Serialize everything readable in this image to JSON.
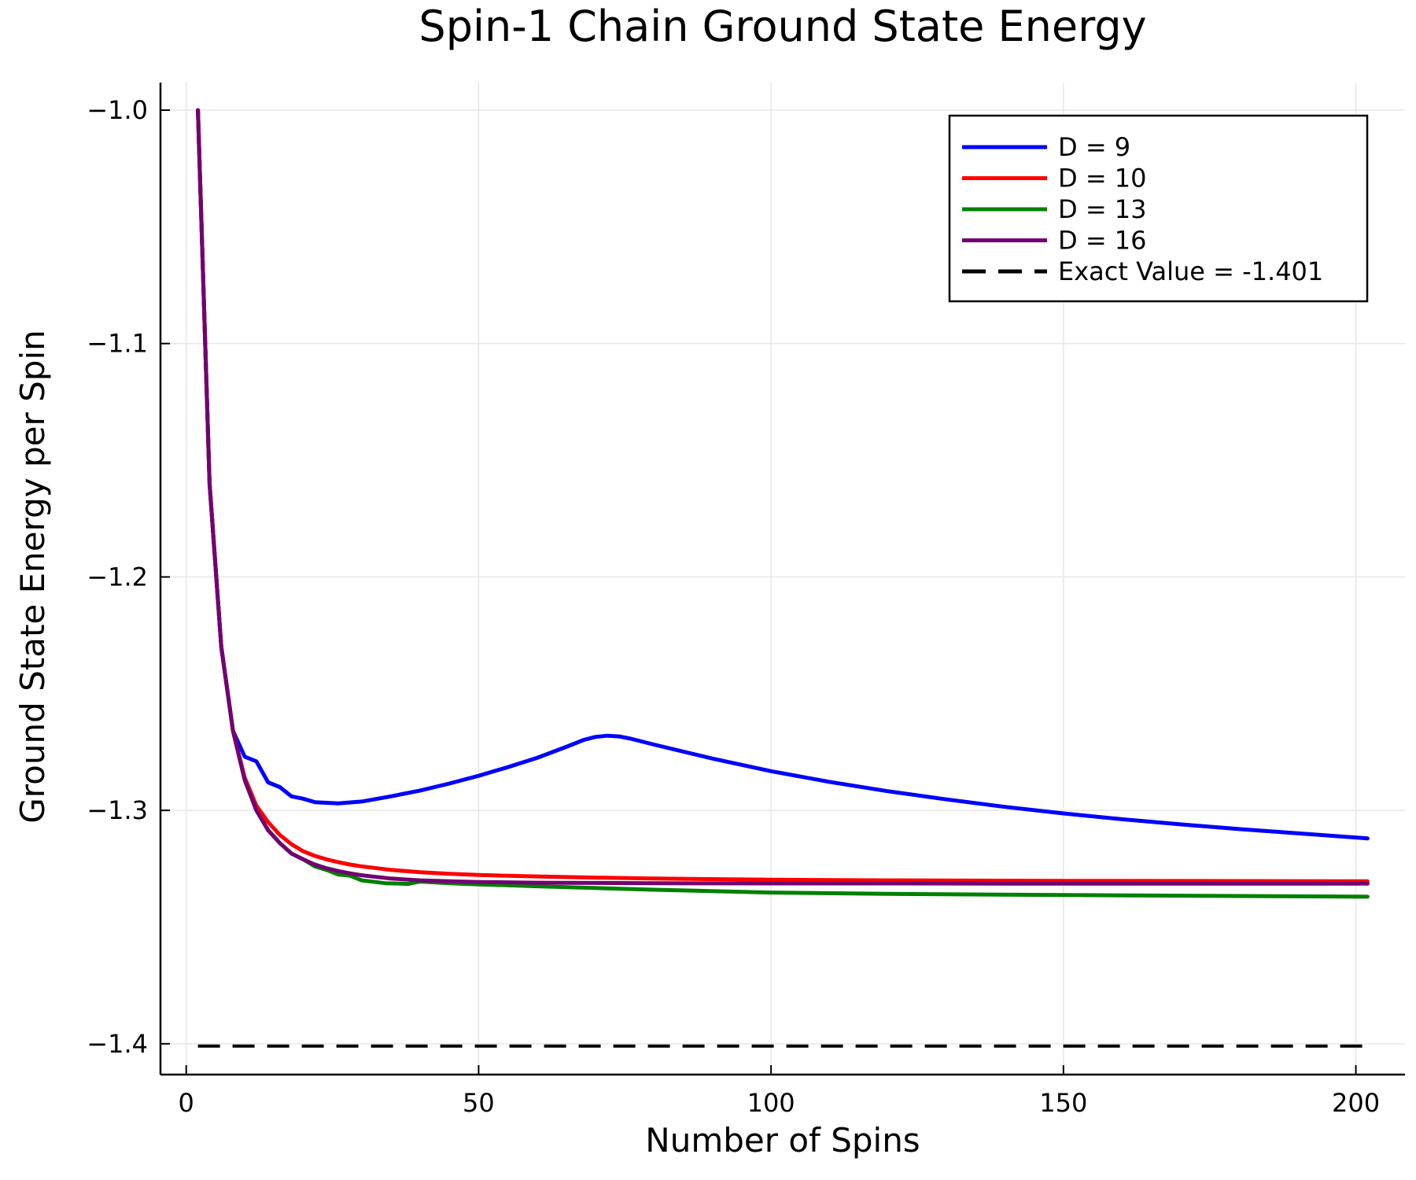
{
  "chart_data": {
    "type": "line",
    "title": "Spin-1 Chain Ground State Energy",
    "xlabel": "Number of Spins",
    "ylabel": "Ground State Energy per Spin",
    "xlim": [
      -4.4,
      208.4
    ],
    "ylim": [
      -1.4132,
      -0.9882
    ],
    "xticks": [
      0,
      50,
      100,
      150,
      200
    ],
    "yticks": [
      -1.0,
      -1.1,
      -1.2,
      -1.3,
      -1.4
    ],
    "ytick_labels": [
      "−1.0",
      "−1.1",
      "−1.2",
      "−1.3",
      "−1.4"
    ],
    "grid": true,
    "legend_position": "top-right",
    "series": [
      {
        "name": "D = 9",
        "color": "#0000ff",
        "x": [
          2,
          4,
          6,
          8,
          10,
          12,
          14,
          16,
          18,
          20,
          22,
          26,
          30,
          35,
          40,
          45,
          50,
          55,
          60,
          65,
          68,
          70,
          72,
          74,
          76,
          80,
          90,
          100,
          110,
          120,
          130,
          140,
          150,
          160,
          170,
          180,
          190,
          202
        ],
        "y": [
          -1.0,
          -1.16,
          -1.23,
          -1.266,
          -1.277,
          -1.279,
          -1.288,
          -1.29,
          -1.294,
          -1.295,
          -1.2965,
          -1.297,
          -1.2962,
          -1.294,
          -1.2915,
          -1.2885,
          -1.2852,
          -1.2815,
          -1.2775,
          -1.2728,
          -1.2698,
          -1.2685,
          -1.268,
          -1.2683,
          -1.2693,
          -1.2718,
          -1.2778,
          -1.2832,
          -1.2878,
          -1.2918,
          -1.2953,
          -1.2985,
          -1.3013,
          -1.3038,
          -1.306,
          -1.308,
          -1.3098,
          -1.312
        ]
      },
      {
        "name": "D = 10",
        "color": "#ff0000",
        "x": [
          2,
          4,
          6,
          8,
          10,
          12,
          14,
          16,
          18,
          20,
          22,
          24,
          26,
          28,
          30,
          35,
          40,
          45,
          50,
          60,
          70,
          80,
          100,
          120,
          150,
          180,
          202
        ],
        "y": [
          -1.0,
          -1.16,
          -1.23,
          -1.266,
          -1.286,
          -1.298,
          -1.305,
          -1.3105,
          -1.3145,
          -1.3175,
          -1.3195,
          -1.321,
          -1.3222,
          -1.3232,
          -1.324,
          -1.3255,
          -1.3265,
          -1.3272,
          -1.3277,
          -1.3283,
          -1.3288,
          -1.3292,
          -1.3297,
          -1.33,
          -1.3302,
          -1.3303,
          -1.3304
        ]
      },
      {
        "name": "D = 13",
        "color": "#008000",
        "x": [
          2,
          4,
          6,
          8,
          10,
          12,
          14,
          16,
          18,
          20,
          22,
          24,
          26,
          28,
          30,
          34,
          38,
          40,
          45,
          50,
          60,
          80,
          100,
          120,
          150,
          180,
          202
        ],
        "y": [
          -1.0,
          -1.16,
          -1.23,
          -1.266,
          -1.287,
          -1.3,
          -1.3085,
          -1.314,
          -1.3185,
          -1.321,
          -1.324,
          -1.3255,
          -1.3275,
          -1.328,
          -1.33,
          -1.3312,
          -1.3315,
          -1.3305,
          -1.3312,
          -1.3317,
          -1.3325,
          -1.334,
          -1.3352,
          -1.3358,
          -1.3363,
          -1.3367,
          -1.337
        ]
      },
      {
        "name": "D = 16",
        "color": "#720072",
        "x": [
          2,
          4,
          6,
          8,
          10,
          12,
          14,
          16,
          18,
          20,
          22,
          24,
          26,
          28,
          30,
          35,
          40,
          45,
          50,
          60,
          80,
          100,
          120,
          150,
          202
        ],
        "y": [
          -1.0,
          -1.16,
          -1.23,
          -1.266,
          -1.287,
          -1.3,
          -1.3085,
          -1.314,
          -1.3185,
          -1.321,
          -1.3232,
          -1.3248,
          -1.326,
          -1.327,
          -1.3278,
          -1.3292,
          -1.33,
          -1.3304,
          -1.3307,
          -1.331,
          -1.3312,
          -1.3313,
          -1.3313,
          -1.3314,
          -1.3314
        ]
      },
      {
        "name": "Exact Value = -1.401",
        "color": "#000000",
        "dashed": true,
        "x": [
          2,
          202
        ],
        "y": [
          -1.401,
          -1.401
        ]
      }
    ]
  }
}
